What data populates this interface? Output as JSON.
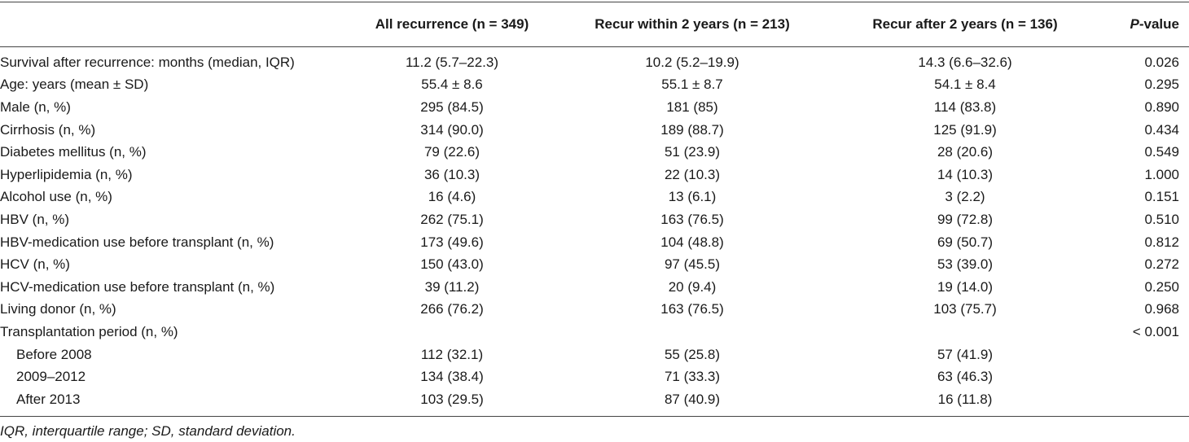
{
  "table": {
    "headers": {
      "characteristic": "",
      "all": "All recurrence (n = 349)",
      "within2": "Recur within 2 years (n = 213)",
      "after2": "Recur after 2 years (n = 136)",
      "pvalue_italic": "P",
      "pvalue_rest": "-value"
    },
    "rows": [
      {
        "label": "Survival after recurrence: months (median, IQR)",
        "all": "11.2 (5.7–22.3)",
        "within2": "10.2 (5.2–19.9)",
        "after2": "14.3 (6.6–32.6)",
        "p": "0.026"
      },
      {
        "label": "Age: years (mean ± SD)",
        "all": "55.4 ± 8.6",
        "within2": "55.1 ± 8.7",
        "after2": "54.1 ± 8.4",
        "p": "0.295"
      },
      {
        "label": "Male (n, %)",
        "all": "295 (84.5)",
        "within2": "181 (85)",
        "after2": "114 (83.8)",
        "p": "0.890"
      },
      {
        "label": "Cirrhosis (n, %)",
        "all": "314 (90.0)",
        "within2": "189 (88.7)",
        "after2": "125 (91.9)",
        "p": "0.434"
      },
      {
        "label": "Diabetes mellitus (n, %)",
        "all": "79 (22.6)",
        "within2": "51 (23.9)",
        "after2": "28 (20.6)",
        "p": "0.549"
      },
      {
        "label": "Hyperlipidemia (n, %)",
        "all": "36 (10.3)",
        "within2": "22 (10.3)",
        "after2": "14 (10.3)",
        "p": "1.000"
      },
      {
        "label": "Alcohol use (n, %)",
        "all": "16 (4.6)",
        "within2": "13 (6.1)",
        "after2": "3 (2.2)",
        "p": "0.151"
      },
      {
        "label": "HBV (n, %)",
        "all": "262 (75.1)",
        "within2": "163 (76.5)",
        "after2": "99 (72.8)",
        "p": "0.510"
      },
      {
        "label": "HBV-medication use before transplant (n, %)",
        "all": "173 (49.6)",
        "within2": "104 (48.8)",
        "after2": "69 (50.7)",
        "p": "0.812"
      },
      {
        "label": "HCV (n, %)",
        "all": "150 (43.0)",
        "within2": "97 (45.5)",
        "after2": "53 (39.0)",
        "p": "0.272"
      },
      {
        "label": "HCV-medication use before transplant (n, %)",
        "all": "39 (11.2)",
        "within2": "20 (9.4)",
        "after2": "19 (14.0)",
        "p": "0.250"
      },
      {
        "label": "Living donor (n, %)",
        "all": "266 (76.2)",
        "within2": "163 (76.5)",
        "after2": "103 (75.7)",
        "p": "0.968"
      },
      {
        "label": "Transplantation period (n, %)",
        "all": "",
        "within2": "",
        "after2": "",
        "p": "< 0.001"
      },
      {
        "label": "Before 2008",
        "indent": true,
        "all": "112 (32.1)",
        "within2": "55 (25.8)",
        "after2": "57 (41.9)",
        "p": ""
      },
      {
        "label": "2009–2012",
        "indent": true,
        "all": "134 (38.4)",
        "within2": "71 (33.3)",
        "after2": "63 (46.3)",
        "p": ""
      },
      {
        "label": "After 2013",
        "indent": true,
        "all": "103 (29.5)",
        "within2": "87 (40.9)",
        "after2": "16 (11.8)",
        "p": ""
      }
    ]
  },
  "footnote": "IQR, interquartile range; SD, standard deviation."
}
